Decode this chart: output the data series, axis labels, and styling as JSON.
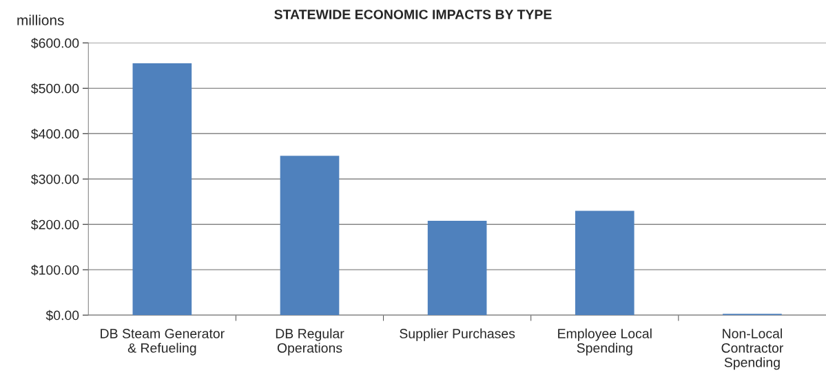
{
  "chart_data": {
    "type": "bar",
    "title": "STATEWIDE ECONOMIC IMPACTS BY TYPE",
    "ylabel": "millions",
    "categories": [
      "DB Steam Generator & Refueling",
      "DB Regular Operations",
      "Supplier Purchases",
      "Employee Local Spending",
      "Non-Local Contractor Spending"
    ],
    "values": [
      555,
      351,
      208,
      230,
      3
    ],
    "color": "#4f81bd",
    "ylim": [
      0,
      600
    ],
    "yticks": [
      {
        "value": 0,
        "label": "$0.00"
      },
      {
        "value": 100,
        "label": "$100.00"
      },
      {
        "value": 200,
        "label": "$200.00"
      },
      {
        "value": 300,
        "label": "$300.00"
      },
      {
        "value": 400,
        "label": "$400.00"
      },
      {
        "value": 500,
        "label": "$500.00"
      },
      {
        "value": 600,
        "label": "$600.00"
      }
    ],
    "grid": "y",
    "legend": false
  }
}
